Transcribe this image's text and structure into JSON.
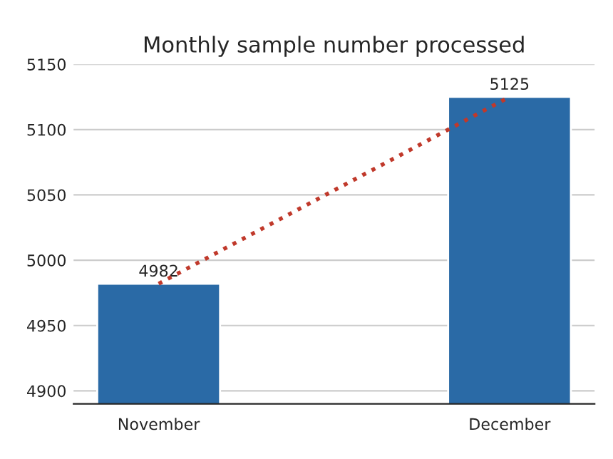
{
  "chart_data": {
    "type": "bar",
    "title": "Monthly sample number processed",
    "categories": [
      "November",
      "December"
    ],
    "series": [
      {
        "color": "#2a6aa6",
        "values": [
          4982,
          5125
        ],
        "data_labels": true
      },
      {
        "type": "line",
        "color": "#c0392b",
        "values": [
          4982,
          5125
        ],
        "line_style": "dotted",
        "marker": "none"
      }
    ],
    "ylim": [
      4890,
      5150
    ],
    "yticks": [
      4900,
      4950,
      5000,
      5050,
      5100,
      5150
    ],
    "grid": "y",
    "legend": false
  }
}
